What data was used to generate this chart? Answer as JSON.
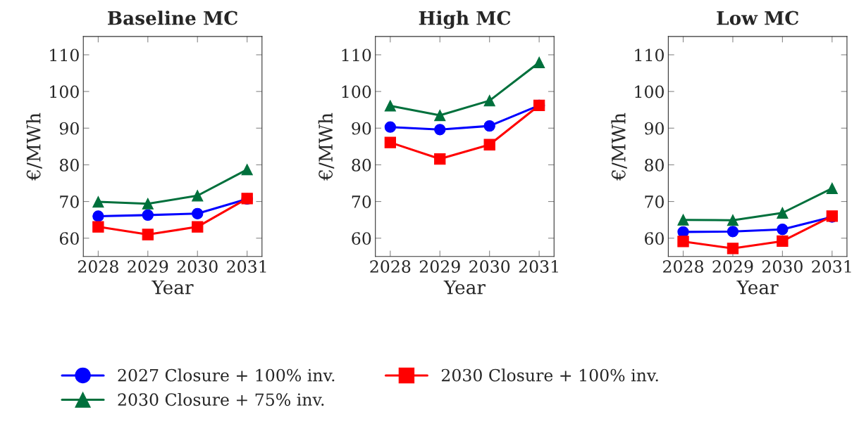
{
  "chart_data": [
    {
      "type": "line",
      "title": "Baseline MC",
      "xlabel": "Year",
      "ylabel": "€/MWh",
      "x": [
        2028,
        2029,
        2030,
        2031
      ],
      "xlim": [
        2027.7,
        2031.3
      ],
      "xticks": [
        2028,
        2029,
        2030,
        2031
      ],
      "ylim": [
        55,
        115
      ],
      "yticks": [
        60,
        70,
        80,
        90,
        100,
        110
      ],
      "legend": "bottom",
      "grid": false,
      "series": [
        {
          "name": "2027 Closure + 100% inv.",
          "color": "#0000ff",
          "marker": "circle",
          "values": [
            66.0,
            66.3,
            66.7,
            70.7
          ]
        },
        {
          "name": "2030 Closure + 100% inv.",
          "color": "#ff0000",
          "marker": "square",
          "values": [
            63.1,
            61.0,
            63.1,
            70.8
          ]
        },
        {
          "name": "2030 Closure + 75% inv.",
          "color": "#00703c",
          "marker": "triangle",
          "values": [
            69.9,
            69.4,
            71.6,
            78.7
          ]
        }
      ]
    },
    {
      "type": "line",
      "title": "High MC",
      "xlabel": "Year",
      "ylabel": "€/MWh",
      "x": [
        2028,
        2029,
        2030,
        2031
      ],
      "xlim": [
        2027.7,
        2031.3
      ],
      "xticks": [
        2028,
        2029,
        2030,
        2031
      ],
      "ylim": [
        55,
        115
      ],
      "yticks": [
        60,
        70,
        80,
        90,
        100,
        110
      ],
      "grid": false,
      "series": [
        {
          "color": "#0000ff",
          "marker": "circle",
          "values": [
            90.3,
            89.6,
            90.6,
            96.2
          ]
        },
        {
          "color": "#ff0000",
          "marker": "square",
          "values": [
            86.1,
            81.6,
            85.5,
            96.2
          ]
        },
        {
          "color": "#00703c",
          "marker": "triangle",
          "values": [
            96.1,
            93.5,
            97.5,
            107.9
          ]
        }
      ]
    },
    {
      "type": "line",
      "title": "Low MC",
      "xlabel": "Year",
      "ylabel": "€/MWh",
      "x": [
        2028,
        2029,
        2030,
        2031
      ],
      "xlim": [
        2027.7,
        2031.3
      ],
      "xticks": [
        2028,
        2029,
        2030,
        2031
      ],
      "ylim": [
        55,
        115
      ],
      "yticks": [
        60,
        70,
        80,
        90,
        100,
        110
      ],
      "grid": false,
      "series": [
        {
          "color": "#0000ff",
          "marker": "circle",
          "values": [
            61.7,
            61.8,
            62.4,
            65.8
          ]
        },
        {
          "color": "#ff0000",
          "marker": "square",
          "values": [
            59.1,
            57.2,
            59.2,
            66.0
          ]
        },
        {
          "color": "#00703c",
          "marker": "triangle",
          "values": [
            65.0,
            64.9,
            66.9,
            73.6
          ]
        }
      ]
    }
  ]
}
